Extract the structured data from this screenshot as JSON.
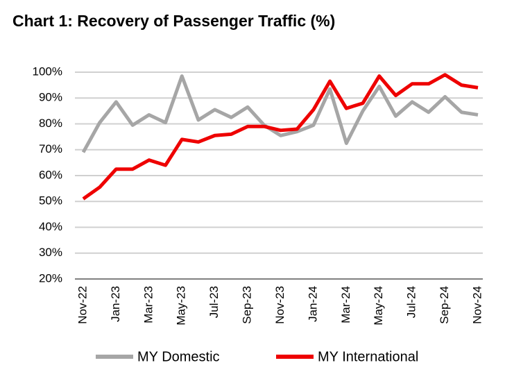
{
  "chart_data": {
    "type": "line",
    "title": "Chart 1: Recovery of Passenger Traffic (%)",
    "categories": [
      "Nov-22",
      null,
      "Jan-23",
      null,
      "Mar-23",
      null,
      "May-23",
      null,
      "Jul-23",
      null,
      "Sep-23",
      null,
      "Nov-23",
      null,
      "Jan-24",
      null,
      "Mar-24",
      null,
      "May-24",
      null,
      "Jul-24",
      null,
      "Sep-24",
      null,
      "Nov-24"
    ],
    "series": [
      {
        "name": "MY Domestic",
        "color": "#a6a6a6",
        "values": [
          69,
          80.5,
          88.5,
          79.5,
          83.5,
          80.5,
          98.5,
          81.5,
          85.5,
          82.5,
          86.5,
          79.5,
          75.5,
          77,
          79.5,
          93.5,
          72.5,
          85,
          94.5,
          83,
          88.5,
          84.5,
          90.5,
          84.5,
          83.5
        ]
      },
      {
        "name": "MY International",
        "color": "#ee0000",
        "values": [
          51,
          55.5,
          62.5,
          62.5,
          66,
          64,
          74,
          73,
          75.5,
          76,
          79,
          79,
          77.5,
          78,
          85.5,
          96.5,
          86,
          88,
          98.5,
          91,
          95.5,
          95.5,
          99,
          95,
          94
        ]
      }
    ],
    "ylim": [
      20,
      100
    ],
    "yticks": [
      {
        "value": 20,
        "label": "20%"
      },
      {
        "value": 30,
        "label": "30%"
      },
      {
        "value": 40,
        "label": "40%"
      },
      {
        "value": 50,
        "label": "50%"
      },
      {
        "value": 60,
        "label": "60%"
      },
      {
        "value": 70,
        "label": "70%"
      },
      {
        "value": 80,
        "label": "80%"
      },
      {
        "value": 90,
        "label": "90%"
      },
      {
        "value": 100,
        "label": "100%"
      }
    ],
    "grid": true
  }
}
